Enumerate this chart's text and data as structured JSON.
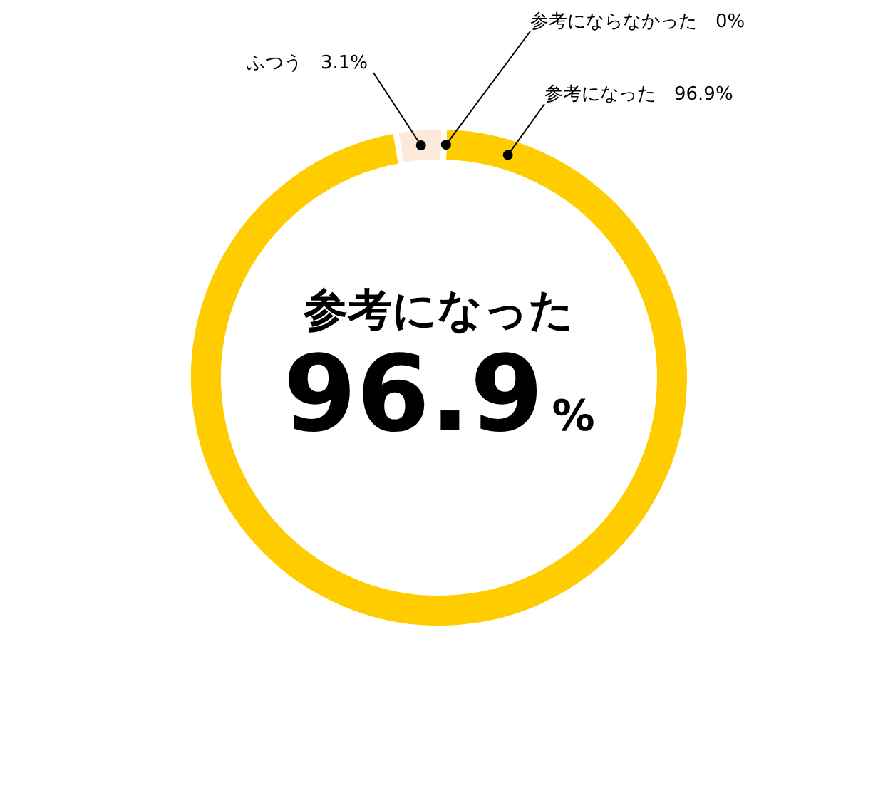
{
  "chart_data": {
    "type": "donut",
    "categories": [
      "参考にならなかった",
      "参考になった",
      "ふつう"
    ],
    "values": [
      0,
      96.9,
      3.1
    ],
    "colors": [
      null,
      "#ffcc00",
      "#fde9d9"
    ],
    "value_labels": [
      "0%",
      "96.9%",
      "3.1%"
    ],
    "annotations": [
      "参考になった",
      "96.9%"
    ]
  }
}
